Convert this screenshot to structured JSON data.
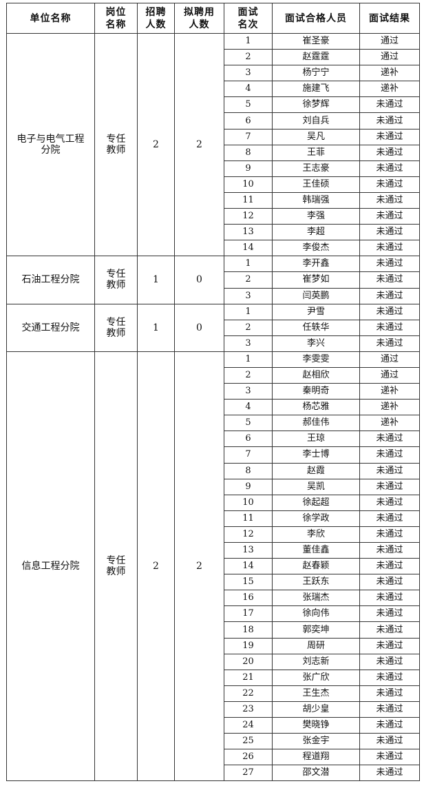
{
  "headers": [
    "单位名称",
    "岗位名称",
    "招聘人数",
    "拟聘用人数",
    "面试名次",
    "面试合格人员",
    "面试结果"
  ],
  "header_lines": [
    [
      "单位名称"
    ],
    [
      "岗位",
      "名称"
    ],
    [
      "招聘",
      "人数"
    ],
    [
      "拟聘用",
      "人数"
    ],
    [
      "面试",
      "名次"
    ],
    [
      "面试合格人员"
    ],
    [
      "面试结果"
    ]
  ],
  "groups": [
    {
      "unit": [
        "电子与电气工程",
        "分院"
      ],
      "position": [
        "专任",
        "教师"
      ],
      "recruit": "2",
      "hire": "2",
      "candidates": [
        [
          "1",
          "崔圣豪",
          "通过"
        ],
        [
          "2",
          "赵霆霆",
          "通过"
        ],
        [
          "3",
          "杨宁宁",
          "递补"
        ],
        [
          "4",
          "施建飞",
          "递补"
        ],
        [
          "5",
          "徐梦辉",
          "未通过"
        ],
        [
          "6",
          "刘自兵",
          "未通过"
        ],
        [
          "7",
          "吴凡",
          "未通过"
        ],
        [
          "8",
          "王菲",
          "未通过"
        ],
        [
          "9",
          "王志豪",
          "未通过"
        ],
        [
          "10",
          "王佳硕",
          "未通过"
        ],
        [
          "11",
          "韩瑞强",
          "未通过"
        ],
        [
          "12",
          "李强",
          "未通过"
        ],
        [
          "13",
          "李超",
          "未通过"
        ],
        [
          "14",
          "李俊杰",
          "未通过"
        ]
      ]
    },
    {
      "unit": [
        "石油工程分院"
      ],
      "position": [
        "专任",
        "教师"
      ],
      "recruit": "1",
      "hire": "0",
      "candidates": [
        [
          "1",
          "李开鑫",
          "未通过"
        ],
        [
          "2",
          "崔梦如",
          "未通过"
        ],
        [
          "3",
          "闫英鹏",
          "未通过"
        ]
      ]
    },
    {
      "unit": [
        "交通工程分院"
      ],
      "position": [
        "专任",
        "教师"
      ],
      "recruit": "1",
      "hire": "0",
      "candidates": [
        [
          "1",
          "尹雪",
          "未通过"
        ],
        [
          "2",
          "任轶华",
          "未通过"
        ],
        [
          "3",
          "李兴",
          "未通过"
        ]
      ]
    },
    {
      "unit": [
        "信息工程分院"
      ],
      "position": [
        "专任",
        "教师"
      ],
      "recruit": "2",
      "hire": "2",
      "candidates": [
        [
          "1",
          "李雯雯",
          "通过"
        ],
        [
          "2",
          "赵相欣",
          "通过"
        ],
        [
          "3",
          "秦明奇",
          "递补"
        ],
        [
          "4",
          "杨芯雅",
          "递补"
        ],
        [
          "5",
          "郝佳伟",
          "递补"
        ],
        [
          "6",
          "王琼",
          "未通过"
        ],
        [
          "7",
          "李士博",
          "未通过"
        ],
        [
          "8",
          "赵霞",
          "未通过"
        ],
        [
          "9",
          "吴凯",
          "未通过"
        ],
        [
          "10",
          "徐起超",
          "未通过"
        ],
        [
          "11",
          "徐学政",
          "未通过"
        ],
        [
          "12",
          "李欣",
          "未通过"
        ],
        [
          "13",
          "董佳鑫",
          "未通过"
        ],
        [
          "14",
          "赵春颖",
          "未通过"
        ],
        [
          "15",
          "王跃东",
          "未通过"
        ],
        [
          "16",
          "张瑞杰",
          "未通过"
        ],
        [
          "17",
          "徐向伟",
          "未通过"
        ],
        [
          "18",
          "郭奕坤",
          "未通过"
        ],
        [
          "19",
          "周研",
          "未通过"
        ],
        [
          "20",
          "刘志新",
          "未通过"
        ],
        [
          "21",
          "张广欣",
          "未通过"
        ],
        [
          "22",
          "王生杰",
          "未通过"
        ],
        [
          "23",
          "胡少皇",
          "未通过"
        ],
        [
          "24",
          "樊晓铮",
          "未通过"
        ],
        [
          "25",
          "张金宇",
          "未通过"
        ],
        [
          "26",
          "程道翔",
          "未通过"
        ],
        [
          "27",
          "邵文潜",
          "未通过"
        ]
      ]
    }
  ]
}
